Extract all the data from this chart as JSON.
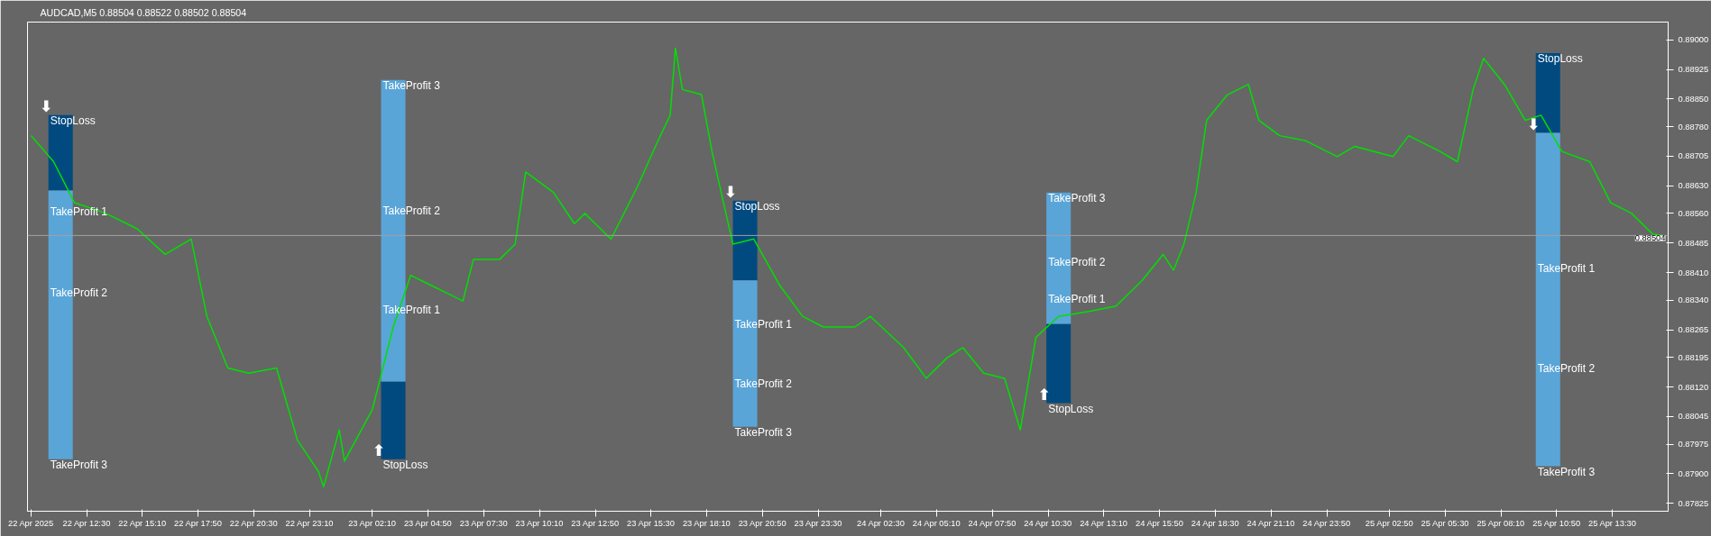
{
  "chart_data": {
    "type": "line",
    "title": "AUDCAD,M5  0.88504 0.88522 0.88502 0.88504",
    "xlim": [
      "2025-04-22T09:40",
      "2025-04-25T16:10"
    ],
    "ylim": [
      0.87805,
      0.89045
    ],
    "xticks": [
      {
        "value": "2025-04-22T09:50",
        "label": "22 Apr 2025"
      },
      {
        "value": "2025-04-22T12:30",
        "label": "22 Apr 12:30"
      },
      {
        "value": "2025-04-22T15:10",
        "label": "22 Apr 15:10"
      },
      {
        "value": "2025-04-22T17:50",
        "label": "22 Apr 17:50"
      },
      {
        "value": "2025-04-22T20:30",
        "label": "22 Apr 20:30"
      },
      {
        "value": "2025-04-22T23:10",
        "label": "22 Apr 23:10"
      },
      {
        "value": "2025-04-23T02:10",
        "label": "23 Apr 02:10"
      },
      {
        "value": "2025-04-23T04:50",
        "label": "23 Apr 04:50"
      },
      {
        "value": "2025-04-23T07:30",
        "label": "23 Apr 07:30"
      },
      {
        "value": "2025-04-23T10:10",
        "label": "23 Apr 10:10"
      },
      {
        "value": "2025-04-23T12:50",
        "label": "23 Apr 12:50"
      },
      {
        "value": "2025-04-23T15:30",
        "label": "23 Apr 15:30"
      },
      {
        "value": "2025-04-23T18:10",
        "label": "23 Apr 18:10"
      },
      {
        "value": "2025-04-23T20:50",
        "label": "23 Apr 20:50"
      },
      {
        "value": "2025-04-23T23:30",
        "label": "23 Apr 23:30"
      },
      {
        "value": "2025-04-24T02:30",
        "label": "24 Apr 02:30"
      },
      {
        "value": "2025-04-24T05:10",
        "label": "24 Apr 05:10"
      },
      {
        "value": "2025-04-24T07:50",
        "label": "24 Apr 07:50"
      },
      {
        "value": "2025-04-24T10:30",
        "label": "24 Apr 10:30"
      },
      {
        "value": "2025-04-24T13:10",
        "label": "24 Apr 13:10"
      },
      {
        "value": "2025-04-24T15:50",
        "label": "24 Apr 15:50"
      },
      {
        "value": "2025-04-24T18:30",
        "label": "24 Apr 18:30"
      },
      {
        "value": "2025-04-24T21:10",
        "label": "24 Apr 21:10"
      },
      {
        "value": "2025-04-24T23:50",
        "label": "24 Apr 23:50"
      },
      {
        "value": "2025-04-25T02:50",
        "label": "25 Apr 02:50"
      },
      {
        "value": "2025-04-25T05:30",
        "label": "25 Apr 05:30"
      },
      {
        "value": "2025-04-25T08:10",
        "label": "25 Apr 08:10"
      },
      {
        "value": "2025-04-25T10:50",
        "label": "25 Apr 10:50"
      },
      {
        "value": "2025-04-25T13:30",
        "label": "25 Apr 13:30"
      }
    ],
    "yticks": [
      {
        "value": 0.89,
        "label": "0.89000"
      },
      {
        "value": 0.88925,
        "label": "0.88925"
      },
      {
        "value": 0.8885,
        "label": "0.88850"
      },
      {
        "value": 0.8878,
        "label": "0.88780"
      },
      {
        "value": 0.88705,
        "label": "0.88705"
      },
      {
        "value": 0.8863,
        "label": "0.88630"
      },
      {
        "value": 0.8856,
        "label": "0.88560"
      },
      {
        "value": 0.88485,
        "label": "0.88485"
      },
      {
        "value": 0.8841,
        "label": "0.88410"
      },
      {
        "value": 0.8834,
        "label": "0.88340"
      },
      {
        "value": 0.88265,
        "label": "0.88265"
      },
      {
        "value": 0.88195,
        "label": "0.88195"
      },
      {
        "value": 0.8812,
        "label": "0.88120"
      },
      {
        "value": 0.88045,
        "label": "0.88045"
      },
      {
        "value": 0.87975,
        "label": "0.87975"
      },
      {
        "value": 0.879,
        "label": "0.87900"
      },
      {
        "value": 0.87825,
        "label": "0.87825"
      }
    ],
    "series": [
      {
        "type": "bar",
        "color": "#004a80",
        "x": [
          "2025-04-22T11:15",
          "2025-04-23T03:10",
          "2025-04-23T20:00",
          "2025-04-24T11:00",
          "2025-04-25T10:25"
        ],
        "base": [
          0.88618,
          0.88134,
          0.8839,
          0.8828,
          0.88764
        ],
        "values": [
          0.00191,
          -0.00197,
          0.00202,
          -0.00201,
          0.00202
        ]
      },
      {
        "type": "bar",
        "color": "#5aa5d8",
        "x": [
          "2025-04-22T11:15",
          "2025-04-23T03:10",
          "2025-04-23T20:00",
          "2025-04-24T11:00",
          "2025-04-25T10:25"
        ],
        "base": [
          0.88618,
          0.88134,
          0.8839,
          0.8828,
          0.88764
        ],
        "values": [
          -0.00681,
          0.00764,
          -0.00371,
          0.00333,
          -0.00845
        ]
      },
      {
        "color": "#00e000",
        "x": [
          "2025-04-22T09:50",
          "2025-04-22T10:55",
          "2025-04-22T11:55",
          "2025-04-22T13:25",
          "2025-04-22T14:55",
          "2025-04-22T16:15",
          "2025-04-22T17:30",
          "2025-04-22T18:15",
          "2025-04-22T19:15",
          "2025-04-22T20:15",
          "2025-04-22T21:35",
          "2025-04-22T22:35",
          "2025-04-22T23:35",
          "2025-04-22T23:50",
          "2025-04-23T00:35",
          "2025-04-23T00:50",
          "2025-04-23T02:10",
          "2025-04-23T03:10",
          "2025-04-23T04:00",
          "2025-04-23T05:00",
          "2025-04-23T06:00",
          "2025-04-23T06:30",
          "2025-04-23T07:00",
          "2025-04-23T08:15",
          "2025-04-23T09:00",
          "2025-04-23T09:30",
          "2025-04-23T10:50",
          "2025-04-23T11:50",
          "2025-04-23T12:20",
          "2025-04-23T13:35",
          "2025-04-23T14:50",
          "2025-04-23T15:50",
          "2025-04-23T16:25",
          "2025-04-23T16:40",
          "2025-04-23T17:00",
          "2025-04-23T17:55",
          "2025-04-23T18:25",
          "2025-04-23T19:25",
          "2025-04-23T20:25",
          "2025-04-23T21:40",
          "2025-04-23T22:45",
          "2025-04-23T23:45",
          "2025-04-24T01:15",
          "2025-04-24T02:00",
          "2025-04-24T03:35",
          "2025-04-24T04:40",
          "2025-04-24T05:40",
          "2025-04-24T06:25",
          "2025-04-24T07:25",
          "2025-04-24T08:25",
          "2025-04-24T09:10",
          "2025-04-24T09:55",
          "2025-04-24T11:00",
          "2025-04-24T12:30",
          "2025-04-24T13:45",
          "2025-04-24T15:00",
          "2025-04-24T16:00",
          "2025-04-24T16:30",
          "2025-04-24T17:00",
          "2025-04-24T17:35",
          "2025-04-24T18:05",
          "2025-04-24T19:05",
          "2025-04-24T20:05",
          "2025-04-24T20:35",
          "2025-04-24T21:35",
          "2025-04-24T22:50",
          "2025-04-25T00:20",
          "2025-04-25T01:10",
          "2025-04-25T03:00",
          "2025-04-25T03:45",
          "2025-04-25T05:15",
          "2025-04-25T06:05",
          "2025-04-25T06:50",
          "2025-04-25T07:20",
          "2025-04-25T08:20",
          "2025-04-25T09:20",
          "2025-04-25T10:05",
          "2025-04-25T11:05",
          "2025-04-25T12:25",
          "2025-04-25T13:25",
          "2025-04-25T14:25",
          "2025-04-25T15:25",
          "2025-04-25T15:55"
        ],
        "values": [
          0.88757,
          0.88691,
          0.88587,
          0.8856,
          0.88521,
          0.88456,
          0.88495,
          0.88299,
          0.88168,
          0.88155,
          0.88168,
          0.87985,
          0.87906,
          0.87867,
          0.88011,
          0.87932,
          0.88063,
          0.88272,
          0.88403,
          0.88377,
          0.88351,
          0.88338,
          0.88443,
          0.88443,
          0.88482,
          0.88665,
          0.88613,
          0.88534,
          0.8856,
          0.88495,
          0.88626,
          0.88744,
          0.88809,
          0.88979,
          0.88874,
          0.88861,
          0.88717,
          0.88482,
          0.88495,
          0.88377,
          0.88299,
          0.88272,
          0.88272,
          0.88299,
          0.8822,
          0.88142,
          0.88194,
          0.8822,
          0.88155,
          0.88142,
          0.88011,
          0.88246,
          0.88299,
          0.88312,
          0.88325,
          0.8839,
          0.88456,
          0.88416,
          0.88482,
          0.88613,
          0.88796,
          0.88861,
          0.88887,
          0.88796,
          0.88757,
          0.88744,
          0.88704,
          0.8873,
          0.88704,
          0.88757,
          0.88717,
          0.88691,
          0.88874,
          0.88953,
          0.88887,
          0.88796,
          0.88809,
          0.88717,
          0.88691,
          0.88587,
          0.8856,
          0.88508,
          0.88504
        ]
      }
    ],
    "ref_lines": [
      {
        "axis": "y",
        "value": 0.88504,
        "label": "0.88504",
        "color": "#a0a0a0"
      }
    ],
    "annotations": [
      {
        "text": "⬇",
        "x": "2025-04-22T11:15",
        "y": 0.88809
      },
      {
        "text": "⬆",
        "x": "2025-04-23T03:10",
        "y": 0.87937
      },
      {
        "text": "⬇",
        "x": "2025-04-23T20:00",
        "y": 0.88592
      },
      {
        "text": "⬆",
        "x": "2025-04-24T11:00",
        "y": 0.88079
      },
      {
        "text": "⬇",
        "x": "2025-04-25T10:25",
        "y": 0.88764
      },
      {
        "text": "StopLoss",
        "x": "2025-04-22T10:40",
        "y": 0.88809
      },
      {
        "text": "TakeProfit 1",
        "x": "2025-04-22T10:40",
        "y": 0.88579
      },
      {
        "text": "TakeProfit 2",
        "x": "2025-04-22T10:40",
        "y": 0.88372
      },
      {
        "text": "TakeProfit 3",
        "x": "2025-04-22T10:40",
        "y": 0.87937
      },
      {
        "text": "TakeProfit 3",
        "x": "2025-04-23T02:35",
        "y": 0.88898
      },
      {
        "text": "TakeProfit 2",
        "x": "2025-04-23T02:35",
        "y": 0.88581
      },
      {
        "text": "TakeProfit 1",
        "x": "2025-04-23T02:35",
        "y": 0.8833
      },
      {
        "text": "StopLoss",
        "x": "2025-04-23T02:35",
        "y": 0.87937
      },
      {
        "text": "StopLoss",
        "x": "2025-04-23T19:25",
        "y": 0.88592
      },
      {
        "text": "TakeProfit 1",
        "x": "2025-04-23T19:25",
        "y": 0.88293
      },
      {
        "text": "TakeProfit 2",
        "x": "2025-04-23T19:25",
        "y": 0.88142
      },
      {
        "text": "TakeProfit 3",
        "x": "2025-04-23T19:25",
        "y": 0.88019
      },
      {
        "text": "TakeProfit 3",
        "x": "2025-04-24T10:25",
        "y": 0.88613
      },
      {
        "text": "TakeProfit 2",
        "x": "2025-04-24T10:25",
        "y": 0.8845
      },
      {
        "text": "TakeProfit 1",
        "x": "2025-04-24T10:25",
        "y": 0.88356
      },
      {
        "text": "StopLoss",
        "x": "2025-04-24T10:25",
        "y": 0.88079
      },
      {
        "text": "StopLoss",
        "x": "2025-04-25T09:50",
        "y": 0.88966
      },
      {
        "text": "TakeProfit 1",
        "x": "2025-04-25T09:50",
        "y": 0.88435
      },
      {
        "text": "TakeProfit 2",
        "x": "2025-04-25T09:50",
        "y": 0.88181
      },
      {
        "text": "TakeProfit 3",
        "x": "2025-04-25T09:50",
        "y": 0.87919
      }
    ]
  }
}
